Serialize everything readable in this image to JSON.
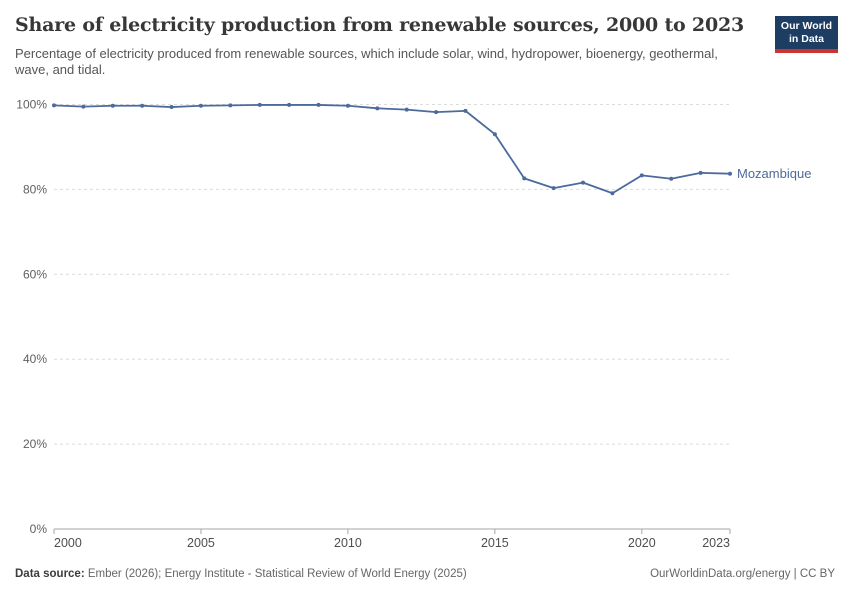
{
  "header": {
    "title": "Share of electricity production from renewable sources, 2000 to 2023",
    "subtitle": "Percentage of electricity produced from renewable sources, which include solar, wind, hydropower, bioenergy, geothermal, wave, and tidal.",
    "logo": {
      "line1": "Our World",
      "line2": "in Data"
    }
  },
  "chart_data": {
    "type": "line",
    "title": "Share of electricity production from renewable sources, 2000 to 2023",
    "x": [
      2000,
      2001,
      2002,
      2003,
      2004,
      2005,
      2006,
      2007,
      2008,
      2009,
      2010,
      2011,
      2012,
      2013,
      2014,
      2015,
      2016,
      2017,
      2018,
      2019,
      2020,
      2021,
      2022,
      2023
    ],
    "series": [
      {
        "name": "Mozambique",
        "color": "#4C6A9C",
        "values": [
          99.8,
          99.5,
          99.7,
          99.7,
          99.4,
          99.7,
          99.8,
          99.9,
          99.9,
          99.9,
          99.7,
          99.1,
          98.8,
          98.2,
          98.5,
          93.0,
          82.6,
          80.3,
          81.6,
          79.1,
          83.3,
          82.5,
          83.9,
          83.7
        ]
      }
    ],
    "xlabel": "",
    "ylabel": "",
    "xlim": [
      2000,
      2023
    ],
    "ylim": [
      0,
      100
    ],
    "x_ticks": [
      2000,
      2005,
      2010,
      2015,
      2020,
      2023
    ],
    "y_ticks": [
      0,
      20,
      40,
      60,
      80,
      100
    ],
    "y_tick_suffix": "%",
    "grid": "horizontal-dashed",
    "legend_position": "end-of-line-label",
    "colors": {
      "line": "#4C6A9C",
      "grid": "#dcdcdc",
      "axis": "#a5a5a5",
      "logo_navy": "#1d3d63",
      "logo_red": "#cc3333"
    }
  },
  "footer": {
    "datasource_label": "Data source:",
    "datasource_text": "Ember (2026); Energy Institute - Statistical Review of World Energy (2025)",
    "license_text": "OurWorldinData.org/energy | CC BY"
  }
}
